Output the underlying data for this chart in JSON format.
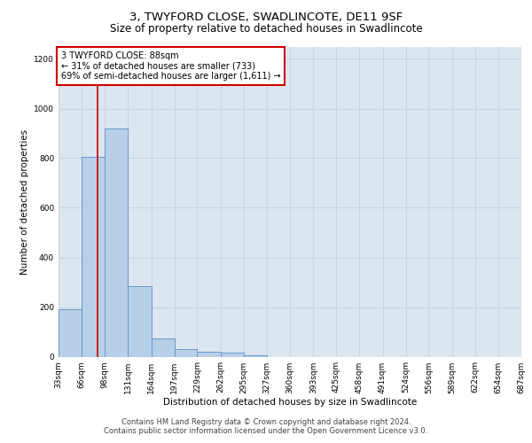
{
  "title": "3, TWYFORD CLOSE, SWADLINCOTE, DE11 9SF",
  "subtitle": "Size of property relative to detached houses in Swadlincote",
  "xlabel": "Distribution of detached houses by size in Swadlincote",
  "ylabel": "Number of detached properties",
  "footer_line1": "Contains HM Land Registry data © Crown copyright and database right 2024.",
  "footer_line2": "Contains public sector information licensed under the Open Government Licence v3.0.",
  "annotation_line1": "3 TWYFORD CLOSE: 88sqm",
  "annotation_line2": "← 31% of detached houses are smaller (733)",
  "annotation_line3": "69% of semi-detached houses are larger (1,611) →",
  "property_size": 88,
  "bar_left_edges": [
    33,
    66,
    98,
    131,
    164,
    197,
    229,
    262,
    295,
    327,
    360,
    393,
    425,
    458,
    491,
    524,
    556,
    589,
    622,
    654
  ],
  "bar_widths": [
    33,
    32,
    33,
    33,
    33,
    32,
    33,
    33,
    32,
    33,
    33,
    32,
    33,
    33,
    33,
    32,
    33,
    33,
    32,
    33
  ],
  "bar_heights": [
    190,
    805,
    920,
    285,
    75,
    30,
    20,
    15,
    5,
    0,
    0,
    0,
    0,
    0,
    0,
    0,
    0,
    0,
    0,
    0
  ],
  "bar_color": "#b8cfe8",
  "bar_edge_color": "#6699cc",
  "vline_color": "#cc0000",
  "vline_x": 88,
  "annotation_box_color": "#cc0000",
  "annotation_bg_color": "#ffffff",
  "grid_color": "#c8d4e4",
  "bg_color": "#dce6f0",
  "ylim": [
    0,
    1250
  ],
  "yticks": [
    0,
    200,
    400,
    600,
    800,
    1000,
    1200
  ],
  "xtick_labels": [
    "33sqm",
    "66sqm",
    "98sqm",
    "131sqm",
    "164sqm",
    "197sqm",
    "229sqm",
    "262sqm",
    "295sqm",
    "327sqm",
    "360sqm",
    "393sqm",
    "425sqm",
    "458sqm",
    "491sqm",
    "524sqm",
    "556sqm",
    "589sqm",
    "622sqm",
    "654sqm",
    "687sqm"
  ],
  "title_fontsize": 9.5,
  "subtitle_fontsize": 8.5,
  "axis_label_fontsize": 7.5,
  "tick_fontsize": 6.5,
  "annotation_fontsize": 7,
  "footer_fontsize": 6
}
